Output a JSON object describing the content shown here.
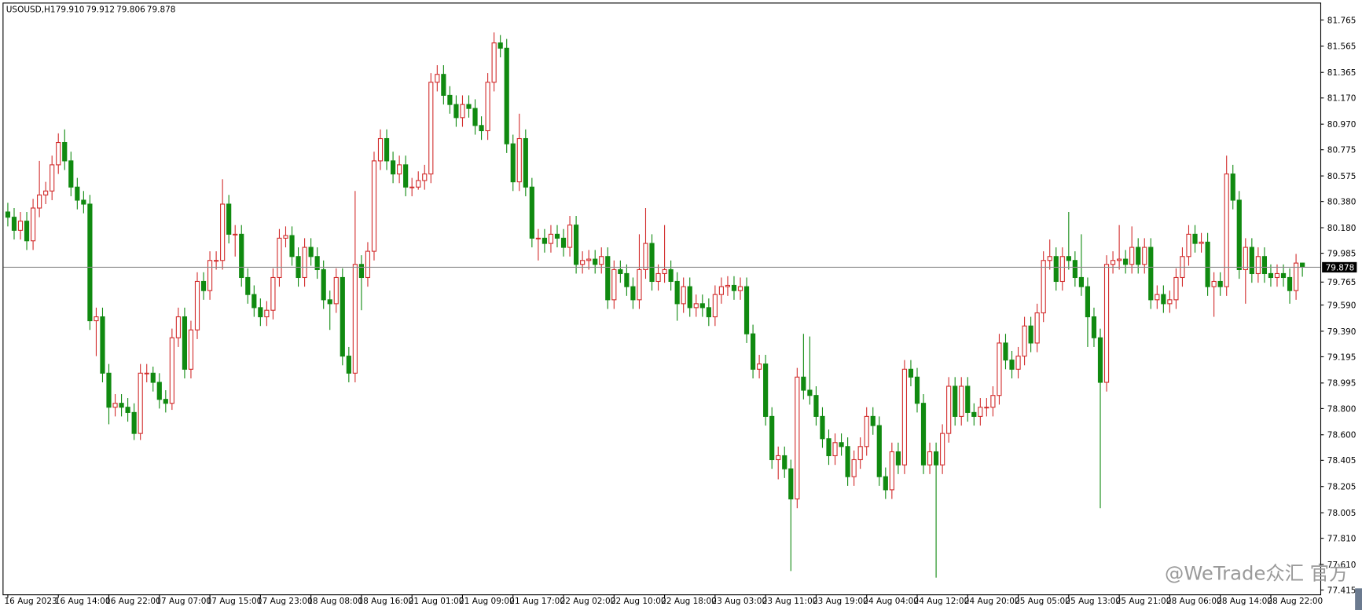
{
  "chart_data": {
    "type": "candlestick",
    "title": "USOUSD,H1",
    "title_values": [
      "79.910",
      "79.912",
      "79.806",
      "79.878"
    ],
    "watermark": "@WeTrade众汇 官方",
    "up_color": "#d22c2c",
    "down_color": "#108a10",
    "price_line_color": "#8c8c8c",
    "grid": false,
    "ylim": [
      77.382,
      81.891
    ],
    "yticks": [
      81.765,
      81.565,
      81.365,
      {
        "value": 81.17,
        "label": "81.170"
      },
      {
        "value": 80.97,
        "label": "80.970"
      },
      80.775,
      80.575,
      {
        "value": 80.38,
        "label": "80.380"
      },
      {
        "value": 80.18,
        "label": "80.180"
      },
      79.985,
      79.765,
      {
        "value": 79.59,
        "label": "79.590"
      },
      {
        "value": 79.39,
        "label": "79.390"
      },
      79.195,
      78.995,
      {
        "value": 78.8,
        "label": "78.800"
      },
      {
        "value": 78.6,
        "label": "78.600"
      },
      78.405,
      78.205,
      78.005,
      {
        "value": 77.81,
        "label": "77.810"
      },
      {
        "value": 77.61,
        "label": "77.610"
      },
      77.415
    ],
    "categories": [
      "16 Aug 2023",
      null,
      null,
      null,
      null,
      null,
      null,
      null,
      "16 Aug 14:00",
      null,
      null,
      null,
      null,
      null,
      null,
      null,
      "16 Aug 22:00",
      null,
      null,
      null,
      null,
      null,
      null,
      null,
      "17 Aug 07:00",
      null,
      null,
      null,
      null,
      null,
      null,
      null,
      "17 Aug 15:00",
      null,
      null,
      null,
      null,
      null,
      null,
      null,
      "17 Aug 23:00",
      null,
      null,
      null,
      null,
      null,
      null,
      null,
      "18 Aug 08:00",
      null,
      null,
      null,
      null,
      null,
      null,
      null,
      "18 Aug 16:00",
      null,
      null,
      null,
      null,
      null,
      null,
      null,
      "21 Aug 01:00",
      null,
      null,
      null,
      null,
      null,
      null,
      null,
      "21 Aug 09:00",
      null,
      null,
      null,
      null,
      null,
      null,
      null,
      "21 Aug 17:00",
      null,
      null,
      null,
      null,
      null,
      null,
      null,
      "22 Aug 02:00",
      null,
      null,
      null,
      null,
      null,
      null,
      null,
      "22 Aug 10:00",
      null,
      null,
      null,
      null,
      null,
      null,
      null,
      "22 Aug 18:00",
      null,
      null,
      null,
      null,
      null,
      null,
      null,
      "23 Aug 03:00",
      null,
      null,
      null,
      null,
      null,
      null,
      null,
      "23 Aug 11:00",
      null,
      null,
      null,
      null,
      null,
      null,
      null,
      "23 Aug 19:00",
      null,
      null,
      null,
      null,
      null,
      null,
      null,
      "24 Aug 04:00",
      null,
      null,
      null,
      null,
      null,
      null,
      null,
      "24 Aug 12:00",
      null,
      null,
      null,
      null,
      null,
      null,
      null,
      "24 Aug 20:00",
      null,
      null,
      null,
      null,
      null,
      null,
      null,
      "25 Aug 05:00",
      null,
      null,
      null,
      null,
      null,
      null,
      null,
      "25 Aug 13:00",
      null,
      null,
      null,
      null,
      null,
      null,
      null,
      "25 Aug 21:00",
      null,
      null,
      null,
      null,
      null,
      null,
      null,
      "28 Aug 06:00",
      null,
      null,
      null,
      null,
      null,
      null,
      null,
      "28 Aug 14:00",
      null,
      null,
      null,
      null,
      null,
      null,
      null,
      "28 Aug 22:00",
      null,
      null,
      null,
      null,
      null
    ],
    "open": [
      80.3,
      80.26,
      80.16,
      80.23,
      80.08,
      80.33,
      80.43,
      80.46,
      80.66,
      80.83,
      80.69,
      80.49,
      80.39,
      80.36,
      79.47,
      79.5,
      79.07,
      78.81,
      78.84,
      78.81,
      78.77,
      78.61,
      79.07,
      79.07,
      79.0,
      78.87,
      78.84,
      79.34,
      79.5,
      79.1,
      79.4,
      79.77,
      79.7,
      79.93,
      79.93,
      80.36,
      80.13,
      80.13,
      79.8,
      79.67,
      79.57,
      79.5,
      79.55,
      79.8,
      80.1,
      80.12,
      79.96,
      79.8,
      80.03,
      79.96,
      79.86,
      79.63,
      79.6,
      79.8,
      79.2,
      79.07,
      79.9,
      79.8,
      80.0,
      80.69,
      80.86,
      80.69,
      80.59,
      80.66,
      80.49,
      80.49,
      80.54,
      80.59,
      81.29,
      81.35,
      81.19,
      81.12,
      81.02,
      81.12,
      81.09,
      80.96,
      80.92,
      81.29,
      81.59,
      81.55,
      80.82,
      80.53,
      80.86,
      80.49,
      80.1,
      80.1,
      80.06,
      80.13,
      80.1,
      80.03,
      80.2,
      79.9,
      79.93,
      79.94,
      79.9,
      79.96,
      79.63,
      79.86,
      79.83,
      79.73,
      79.63,
      79.86,
      80.06,
      79.77,
      79.83,
      79.86,
      79.77,
      79.6,
      79.73,
      79.57,
      79.6,
      79.57,
      79.5,
      79.67,
      79.73,
      79.74,
      79.7,
      79.73,
      79.37,
      79.1,
      79.14,
      78.74,
      78.41,
      78.44,
      78.34,
      78.11,
      79.04,
      78.94,
      78.9,
      78.74,
      78.57,
      78.44,
      78.54,
      78.51,
      78.28,
      78.41,
      78.51,
      78.74,
      78.67,
      78.28,
      78.18,
      78.47,
      78.37,
      79.1,
      79.04,
      78.84,
      78.37,
      78.47,
      78.37,
      78.61,
      78.97,
      78.74,
      78.97,
      78.77,
      78.74,
      78.81,
      78.81,
      78.9,
      79.3,
      79.17,
      79.1,
      79.2,
      79.43,
      79.3,
      79.53,
      79.93,
      79.96,
      79.77,
      79.96,
      79.93,
      79.8,
      79.73,
      79.5,
      79.34,
      79.0,
      79.9,
      79.93,
      79.94,
      79.9,
      80.03,
      79.9,
      80.03,
      79.63,
      79.67,
      79.6,
      79.63,
      79.8,
      79.96,
      80.13,
      80.06,
      80.07,
      79.73,
      79.77,
      79.73,
      80.59,
      80.39,
      79.86,
      80.03,
      79.83,
      79.96,
      79.83,
      79.8,
      79.83,
      79.8,
      79.7,
      79.91
    ],
    "high": [
      80.37,
      80.33,
      80.3,
      80.3,
      80.4,
      80.69,
      80.53,
      80.73,
      80.9,
      80.93,
      80.76,
      80.56,
      80.46,
      80.43,
      79.57,
      79.57,
      79.14,
      78.91,
      78.91,
      78.88,
      78.84,
      79.14,
      79.14,
      79.12,
      79.07,
      78.94,
      79.41,
      79.57,
      79.57,
      79.47,
      79.84,
      79.84,
      80.0,
      80.0,
      80.55,
      80.43,
      80.2,
      80.2,
      79.87,
      79.74,
      79.64,
      79.62,
      79.87,
      80.17,
      80.19,
      80.19,
      80.03,
      80.1,
      80.1,
      80.03,
      79.93,
      79.7,
      79.87,
      79.87,
      79.27,
      80.46,
      79.97,
      80.07,
      80.76,
      80.93,
      80.93,
      80.76,
      80.73,
      80.73,
      80.56,
      80.61,
      80.66,
      81.36,
      81.42,
      81.42,
      81.26,
      81.19,
      81.19,
      81.19,
      81.16,
      81.03,
      81.36,
      81.67,
      81.65,
      81.62,
      80.89,
      81.05,
      80.93,
      80.56,
      80.17,
      80.17,
      80.2,
      80.2,
      80.17,
      80.27,
      80.27,
      80.0,
      80.01,
      80.01,
      80.03,
      80.03,
      79.93,
      79.93,
      79.9,
      79.8,
      80.13,
      80.33,
      80.13,
      79.9,
      80.2,
      79.93,
      79.84,
      79.8,
      79.8,
      79.67,
      79.67,
      79.64,
      79.74,
      79.8,
      79.81,
      79.81,
      79.8,
      79.8,
      79.44,
      79.21,
      79.21,
      78.81,
      78.51,
      78.51,
      78.41,
      79.11,
      79.37,
      79.35,
      78.97,
      78.81,
      78.64,
      78.61,
      78.61,
      78.58,
      78.48,
      78.58,
      78.81,
      78.81,
      78.74,
      78.35,
      78.54,
      78.54,
      79.17,
      79.17,
      79.11,
      78.91,
      78.54,
      78.54,
      78.68,
      79.04,
      79.04,
      79.04,
      79.04,
      78.84,
      78.88,
      78.88,
      78.97,
      79.37,
      79.37,
      79.24,
      79.27,
      79.5,
      79.5,
      79.6,
      80.0,
      80.09,
      80.03,
      80.03,
      80.3,
      80.0,
      80.13,
      79.8,
      79.57,
      79.41,
      79.97,
      80.0,
      80.2,
      80.01,
      80.19,
      80.1,
      80.1,
      80.1,
      79.74,
      79.74,
      79.7,
      79.87,
      80.03,
      80.2,
      80.2,
      80.14,
      80.14,
      79.84,
      79.84,
      80.73,
      80.66,
      80.46,
      80.1,
      80.1,
      80.03,
      80.03,
      79.9,
      79.9,
      79.9,
      79.87,
      79.98,
      79.912
    ],
    "low": [
      80.19,
      80.09,
      80.09,
      80.01,
      80.01,
      80.26,
      80.36,
      80.39,
      80.59,
      80.62,
      80.42,
      80.32,
      80.29,
      79.4,
      79.2,
      79.0,
      78.68,
      78.74,
      78.74,
      78.7,
      78.56,
      78.56,
      79.0,
      78.93,
      78.8,
      78.77,
      78.79,
      79.27,
      79.03,
      79.03,
      79.33,
      79.63,
      79.63,
      79.86,
      79.86,
      80.06,
      79.96,
      79.73,
      79.6,
      79.5,
      79.43,
      79.43,
      79.48,
      79.73,
      80.03,
      79.89,
      79.73,
      79.73,
      79.89,
      79.79,
      79.56,
      79.4,
      79.53,
      79.13,
      79.0,
      79.0,
      79.55,
      79.73,
      79.93,
      80.62,
      80.62,
      80.52,
      80.52,
      80.42,
      80.42,
      80.47,
      80.47,
      80.52,
      81.22,
      81.12,
      81.05,
      80.95,
      80.95,
      81.02,
      80.89,
      80.85,
      80.85,
      81.22,
      81.48,
      80.75,
      80.46,
      80.46,
      80.42,
      80.03,
      79.93,
      79.99,
      79.99,
      80.03,
      79.96,
      79.96,
      79.83,
      79.83,
      79.86,
      79.83,
      79.83,
      79.56,
      79.56,
      79.76,
      79.66,
      79.56,
      79.56,
      79.79,
      79.7,
      79.7,
      79.76,
      79.7,
      79.47,
      79.53,
      79.5,
      79.5,
      79.5,
      79.43,
      79.43,
      79.6,
      79.66,
      79.63,
      79.63,
      79.3,
      79.03,
      79.03,
      78.67,
      78.34,
      78.26,
      78.27,
      77.56,
      78.04,
      78.87,
      78.83,
      78.67,
      78.5,
      78.37,
      78.37,
      78.44,
      78.21,
      78.21,
      78.34,
      78.44,
      78.6,
      78.21,
      78.11,
      78.11,
      78.3,
      78.3,
      78.97,
      78.77,
      78.3,
      78.3,
      77.51,
      78.3,
      78.54,
      78.67,
      78.67,
      78.7,
      78.67,
      78.67,
      78.74,
      78.74,
      78.83,
      79.1,
      79.03,
      79.03,
      79.13,
      79.23,
      79.23,
      79.46,
      79.86,
      79.7,
      79.7,
      79.86,
      79.73,
      79.66,
      79.27,
      79.27,
      78.04,
      78.93,
      79.83,
      79.86,
      79.83,
      79.83,
      79.83,
      79.83,
      79.56,
      79.56,
      79.53,
      79.53,
      79.56,
      79.73,
      79.89,
      79.99,
      79.99,
      79.66,
      79.5,
      79.66,
      79.66,
      80.32,
      79.79,
      79.6,
      79.76,
      79.76,
      79.76,
      79.73,
      79.73,
      79.73,
      79.6,
      79.63,
      79.806
    ],
    "close": [
      80.26,
      80.16,
      80.23,
      80.08,
      80.33,
      80.43,
      80.46,
      80.66,
      80.83,
      80.69,
      80.49,
      80.39,
      80.36,
      79.47,
      79.5,
      79.07,
      78.81,
      78.84,
      78.81,
      78.77,
      78.61,
      79.07,
      79.07,
      79.0,
      78.87,
      78.84,
      79.34,
      79.5,
      79.1,
      79.4,
      79.77,
      79.7,
      79.93,
      79.93,
      80.36,
      80.13,
      80.13,
      79.8,
      79.67,
      79.57,
      79.5,
      79.55,
      79.8,
      80.1,
      80.12,
      79.96,
      79.8,
      80.03,
      79.96,
      79.86,
      79.63,
      79.6,
      79.8,
      79.2,
      79.07,
      79.9,
      79.8,
      80.0,
      80.69,
      80.86,
      80.69,
      80.59,
      80.66,
      80.49,
      80.49,
      80.54,
      80.59,
      81.29,
      81.35,
      81.19,
      81.12,
      81.02,
      81.12,
      81.09,
      80.96,
      80.92,
      81.29,
      81.59,
      81.55,
      80.82,
      80.53,
      80.86,
      80.49,
      80.1,
      80.1,
      80.06,
      80.13,
      80.1,
      80.03,
      80.2,
      79.9,
      79.93,
      79.94,
      79.9,
      79.96,
      79.63,
      79.86,
      79.83,
      79.73,
      79.63,
      79.86,
      80.06,
      79.77,
      79.83,
      79.86,
      79.77,
      79.6,
      79.73,
      79.57,
      79.6,
      79.57,
      79.5,
      79.67,
      79.73,
      79.74,
      79.7,
      79.73,
      79.37,
      79.1,
      79.14,
      78.74,
      78.41,
      78.44,
      78.34,
      78.11,
      79.04,
      78.94,
      78.9,
      78.74,
      78.57,
      78.44,
      78.54,
      78.51,
      78.28,
      78.41,
      78.51,
      78.74,
      78.67,
      78.28,
      78.18,
      78.47,
      78.37,
      79.1,
      79.04,
      78.84,
      78.37,
      78.47,
      78.37,
      78.61,
      78.97,
      78.74,
      78.97,
      78.77,
      78.74,
      78.81,
      78.81,
      78.9,
      79.3,
      79.17,
      79.1,
      79.2,
      79.43,
      79.3,
      79.53,
      79.93,
      79.96,
      79.77,
      79.96,
      79.93,
      79.8,
      79.73,
      79.5,
      79.34,
      79.0,
      79.9,
      79.93,
      79.94,
      79.9,
      80.03,
      79.9,
      80.03,
      79.63,
      79.67,
      79.6,
      79.63,
      79.8,
      79.96,
      80.13,
      80.06,
      80.07,
      79.73,
      79.77,
      79.73,
      80.59,
      80.39,
      79.86,
      80.03,
      79.83,
      79.96,
      79.83,
      79.8,
      79.83,
      79.8,
      79.7,
      79.91,
      79.878
    ]
  }
}
